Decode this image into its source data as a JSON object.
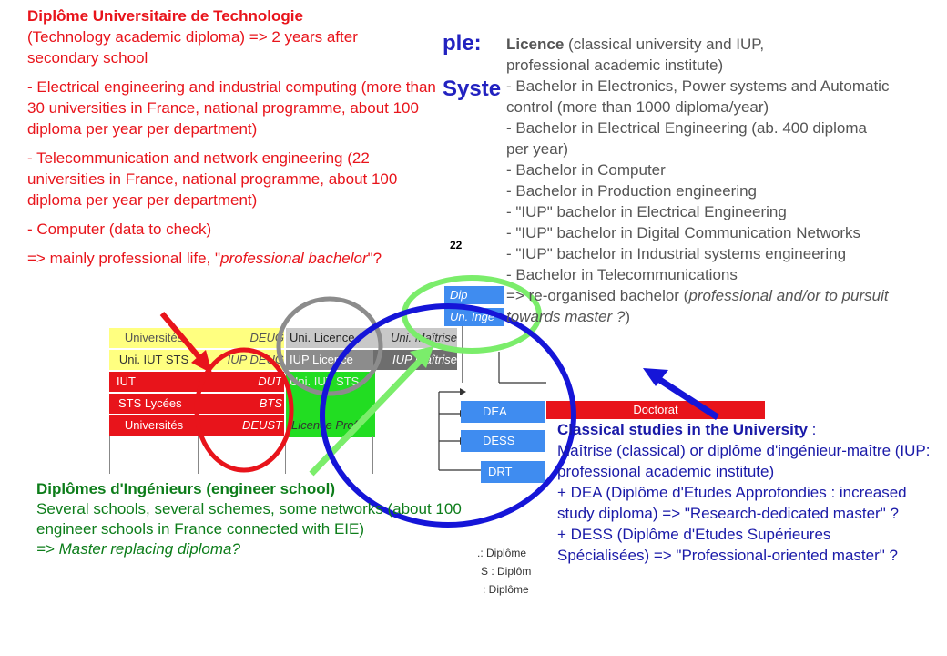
{
  "slide": {
    "title_fragment_1": "ple:",
    "title_fragment_2": "Syste",
    "page_number": "22"
  },
  "grid": {
    "col1": [
      "Universités",
      "Uni. IUT STS",
      "IUT",
      "STS Lycées",
      "Universités"
    ],
    "col2": [
      "DEUG",
      "IUP  DEUG",
      "DUT",
      "BTS",
      "DEUST"
    ],
    "col3": [
      "Uni. Licence",
      "IUP Licence",
      "Uni. IUT STS",
      "",
      "Licence Prof"
    ],
    "col4": [
      "Uni.  Maîtrise",
      "IUP  Maîtrise"
    ],
    "col5": [
      "Dip",
      "Un. Ingé"
    ]
  },
  "right_diagram": {
    "dea": "DEA",
    "dess": "DESS",
    "drt": "DRT",
    "doctorat": "Doctorat",
    "footnotes": [
      ".: Diplôme",
      "S : Diplôm",
      ": Diplôme"
    ]
  },
  "callouts": {
    "dut": {
      "title": "Diplôme Universitaire de Technologie",
      "subtitle": "(Technology academic diploma) => 2 years after secondary school",
      "item1": "- Electrical engineering and industrial computing (more than 30 universities in France, national programme, about 100 diploma per year per department)",
      "item2": "- Telecommunication and network engineering (22 universities in France, national programme, about 100 diploma per year per department)",
      "item3": "- Computer (data to check)",
      "conclusion_prefix": "=> mainly professional life, \"",
      "conclusion_italic": "professional bachelor",
      "conclusion_suffix": "\"?"
    },
    "licence": {
      "title": "Licence",
      "intro": " (classical university and IUP, professional academic institute)",
      "lines": [
        "- Bachelor in Electronics, Power systems and Automatic control (more than 1000 diploma/year)",
        "- Bachelor in Electrical Engineering (ab. 400 diploma per year)",
        "- Bachelor in Computer",
        "- Bachelor in Production engineering",
        "- \"IUP\" bachelor in Electrical Engineering",
        "- \"IUP\" bachelor in Digital Communication Networks",
        "- \"IUP\" bachelor in Industrial systems engineering",
        "- Bachelor in Telecommunications"
      ],
      "last_prefix": "=> re-organised bachelor (",
      "last_italic": "professional and/or to pursuit towards master ?",
      "last_suffix": ")"
    },
    "engineer": {
      "title": "Diplômes d'Ingénieurs (engineer school)",
      "body": "Several schools, several schemes, some networks (about 100 engineer schools in France connected with EIE)",
      "conclusion": "=> Master replacing diploma?"
    },
    "classical": {
      "title": "Classical studies in the University",
      "title_suffix": " :",
      "line1": "Maîtrise (classical) or diplôme d'ingénieur-maître (IUP: professional academic institute)",
      "line2": "+ DEA (Diplôme d'Etudes Approfondies : increased study diploma) => \"Research-dedicated master\" ?",
      "line3": "+ DESS (Diplôme d'Etudes Supérieures Spécialisées) => \"Professional-oriented master\" ?"
    }
  },
  "colors": {
    "red": "#e8141b",
    "yellow": "#ffff80",
    "green": "#22dd22",
    "gray": "#8c8c8c",
    "dark_gray": "#6e6e6e",
    "blue": "#3f8cf0",
    "callout_gray": "#555555",
    "callout_green": "#0d7d1a",
    "callout_blue": "#1a1aa8",
    "light_green_circle": "#7bed6b",
    "dark_blue_circle": "#1515d8"
  }
}
